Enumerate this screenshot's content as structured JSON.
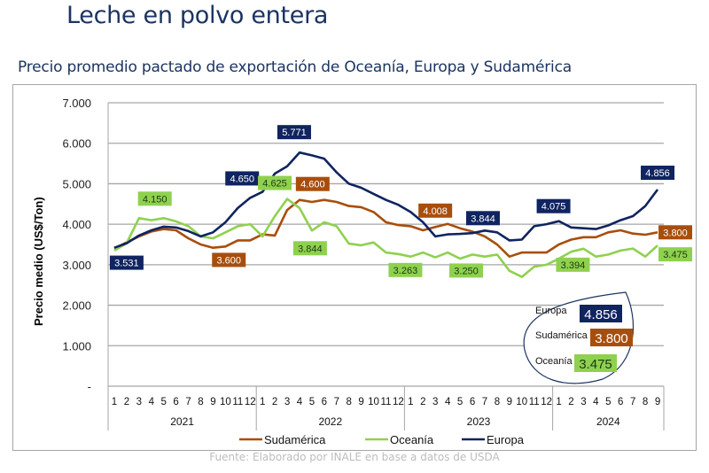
{
  "header": {
    "title": "Leche en polvo entera",
    "subtitle": "Precio promedio pactado de exportación de Oceanía, Europa y Sudamérica"
  },
  "source": "Fuente: Elaborado por INALE en base a datos de USDA",
  "callout": {
    "items": [
      {
        "label": "Europa",
        "value": "4.856",
        "color": "#0f2460",
        "text_color": "#ffffff"
      },
      {
        "label": "Sudamérica",
        "value": "3.800",
        "color": "#a84e0c",
        "text_color": "#ffffff"
      },
      {
        "label": "Oceanía",
        "value": "3.475",
        "color": "#8fd14f",
        "text_color": "#1a3a10"
      }
    ]
  },
  "chart_data": {
    "type": "line",
    "title": "Precio promedio pactado de exportación de Oceanía, Europa y Sudamérica",
    "xlabel": "",
    "ylabel": "Precio medio (US$/Ton)",
    "ylim": [
      0,
      7000
    ],
    "yticks": [
      0,
      1000,
      2000,
      3000,
      4000,
      5000,
      6000,
      7000
    ],
    "ytick_labels": [
      "-",
      "1.000",
      "2.000",
      "3.000",
      "4.000",
      "5.000",
      "6.000",
      "7.000"
    ],
    "grid": true,
    "legend_position": "bottom",
    "years": [
      {
        "label": "2021",
        "months": 12
      },
      {
        "label": "2022",
        "months": 12
      },
      {
        "label": "2023",
        "months": 12
      },
      {
        "label": "2024",
        "months": 9
      }
    ],
    "x": [
      "1",
      "2",
      "3",
      "4",
      "5",
      "6",
      "7",
      "8",
      "9",
      "10",
      "11",
      "12",
      "1",
      "2",
      "3",
      "4",
      "5",
      "6",
      "7",
      "8",
      "9",
      "10",
      "11",
      "12",
      "1",
      "2",
      "3",
      "4",
      "5",
      "6",
      "7",
      "8",
      "9",
      "10",
      "11",
      "12",
      "1",
      "2",
      "3",
      "4",
      "5",
      "6",
      "7",
      "8",
      "9"
    ],
    "series": [
      {
        "name": "Sudamérica",
        "color": "#a84e0c",
        "values": [
          3400,
          3550,
          3700,
          3820,
          3880,
          3850,
          3650,
          3500,
          3420,
          3450,
          3600,
          3600,
          3750,
          3720,
          4350,
          4600,
          4550,
          4600,
          4550,
          4450,
          4420,
          4300,
          4050,
          3980,
          3950,
          3850,
          3930,
          4008,
          3900,
          3820,
          3700,
          3500,
          3200,
          3300,
          3300,
          3300,
          3500,
          3620,
          3680,
          3680,
          3800,
          3850,
          3770,
          3740,
          3800
        ]
      },
      {
        "name": "Oceanía",
        "color": "#8fd14f",
        "values": [
          3350,
          3531,
          4150,
          4100,
          4150,
          4070,
          3950,
          3700,
          3650,
          3800,
          3950,
          4000,
          3700,
          4200,
          4625,
          4400,
          3844,
          4050,
          3950,
          3520,
          3480,
          3550,
          3300,
          3263,
          3200,
          3300,
          3180,
          3300,
          3150,
          3250,
          3200,
          3250,
          2850,
          2700,
          2950,
          3000,
          3150,
          3320,
          3394,
          3200,
          3250,
          3350,
          3400,
          3200,
          3475
        ]
      },
      {
        "name": "Europa",
        "color": "#0f2460",
        "values": [
          3420,
          3531,
          3720,
          3850,
          3940,
          3920,
          3830,
          3700,
          3800,
          4050,
          4400,
          4650,
          4800,
          5250,
          5430,
          5771,
          5700,
          5620,
          5280,
          5000,
          4900,
          4750,
          4600,
          4480,
          4300,
          4050,
          3700,
          3750,
          3760,
          3780,
          3844,
          3800,
          3600,
          3620,
          3950,
          4000,
          4075,
          3920,
          3900,
          3880,
          3970,
          4100,
          4200,
          4450,
          4856
        ]
      }
    ],
    "annotations": [
      {
        "series": "Europa",
        "index": 1,
        "text": "3.531"
      },
      {
        "series": "Europa",
        "index": 11,
        "text": "4.650"
      },
      {
        "series": "Europa",
        "index": 15,
        "text": "5.771"
      },
      {
        "series": "Europa",
        "index": 30,
        "text": "3.844"
      },
      {
        "series": "Europa",
        "index": 36,
        "text": "4.075"
      },
      {
        "series": "Europa",
        "index": 44,
        "text": "4.856"
      },
      {
        "series": "Oceanía",
        "index": 4,
        "text": "4.150"
      },
      {
        "series": "Oceanía",
        "index": 14,
        "text": "4.625"
      },
      {
        "series": "Oceanía",
        "index": 16,
        "text": "3.844"
      },
      {
        "series": "Oceanía",
        "index": 23,
        "text": "3.263"
      },
      {
        "series": "Oceanía",
        "index": 29,
        "text": "3.250"
      },
      {
        "series": "Oceanía",
        "index": 38,
        "text": "3.394"
      },
      {
        "series": "Oceanía",
        "index": 44,
        "text": "3.475"
      },
      {
        "series": "Sudamérica",
        "index": 11,
        "text": "3.600"
      },
      {
        "series": "Sudamérica",
        "index": 17,
        "text": "4.600"
      },
      {
        "series": "Sudamérica",
        "index": 27,
        "text": "4.008"
      },
      {
        "series": "Sudamérica",
        "index": 44,
        "text": "3.800"
      }
    ]
  }
}
